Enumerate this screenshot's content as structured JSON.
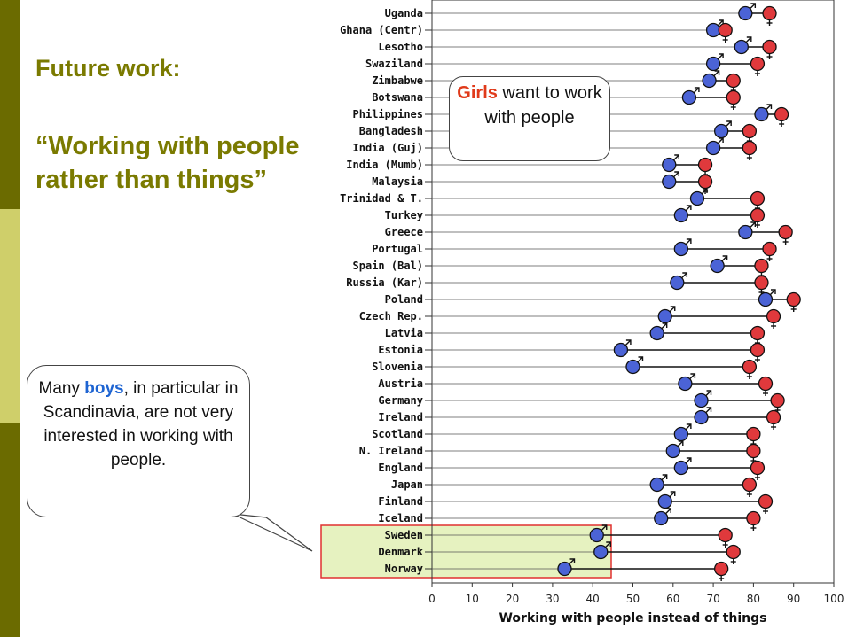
{
  "slide": {
    "title_main": "Future work:",
    "title_sub": "“Working with people rather than things”"
  },
  "callout_boys": {
    "pre": "Many ",
    "highlight": "boys",
    "post": ", in particular in Scandinavia, are not very interested in working with people."
  },
  "callout_girls": {
    "highlight": "Girls",
    "post": " want to work with people"
  },
  "colors": {
    "boys": "#4b63d6",
    "girls": "#e0393c",
    "highlight_fill": "#e6f2c0",
    "highlight_border": "#e03030",
    "accent_dark": "#6b6b00",
    "accent_light": "#cfcf6a"
  },
  "chart_data": {
    "type": "dumbbell",
    "xlabel": "Working with people instead of things",
    "xlim": [
      0,
      100
    ],
    "xticks": [
      0,
      10,
      20,
      30,
      40,
      50,
      60,
      70,
      80,
      90,
      100
    ],
    "grid": false,
    "series": [
      {
        "name": "♂",
        "key": "boys"
      },
      {
        "name": "♀",
        "key": "girls"
      }
    ],
    "categories": [
      "Uganda",
      "Ghana (Centr)",
      "Lesotho",
      "Swaziland",
      "Zimbabwe",
      "Botswana",
      "Philippines",
      "Bangladesh",
      "India (Guj)",
      "India (Mumb)",
      "Malaysia",
      "Trinidad & T.",
      "Turkey",
      "Greece",
      "Portugal",
      "Spain (Bal)",
      "Russia (Kar)",
      "Poland",
      "Czech Rep.",
      "Latvia",
      "Estonia",
      "Slovenia",
      "Austria",
      "Germany",
      "Ireland",
      "Scotland",
      "N. Ireland",
      "England",
      "Japan",
      "Finland",
      "Iceland",
      "Sweden",
      "Denmark",
      "Norway"
    ],
    "boys": [
      78,
      70,
      77,
      70,
      69,
      64,
      82,
      72,
      70,
      59,
      59,
      66,
      62,
      78,
      62,
      71,
      61,
      83,
      58,
      56,
      47,
      50,
      63,
      67,
      67,
      62,
      60,
      62,
      56,
      58,
      57,
      41,
      42,
      33
    ],
    "girls": [
      84,
      73,
      84,
      81,
      75,
      75,
      87,
      79,
      79,
      68,
      68,
      81,
      81,
      88,
      84,
      82,
      82,
      90,
      85,
      81,
      81,
      79,
      83,
      86,
      85,
      80,
      80,
      81,
      79,
      83,
      80,
      73,
      75,
      72
    ],
    "highlighted": [
      "Sweden",
      "Denmark",
      "Norway"
    ]
  }
}
